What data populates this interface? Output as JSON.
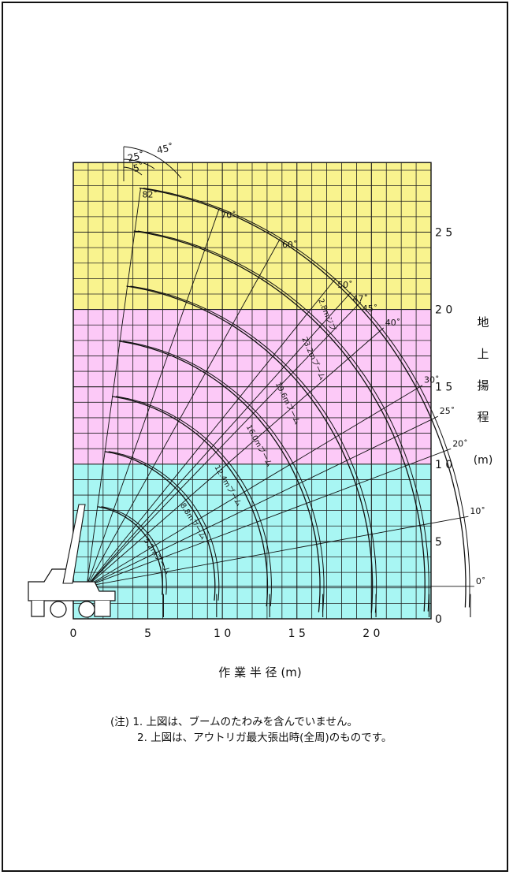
{
  "chart_data": {
    "type": "line",
    "title": "",
    "xlabel": "作 業 半 径 (m)",
    "ylabel_chars": [
      "地",
      "上",
      "揚",
      "程"
    ],
    "ylabel_unit": "(m)",
    "xlim": [
      0,
      24
    ],
    "ylim": [
      0,
      30
    ],
    "xticks": [
      0,
      5,
      10,
      15,
      20
    ],
    "xtick_labels": [
      "0",
      "5",
      "1 0",
      "1 5",
      "2 0"
    ],
    "yticks": [
      0,
      5,
      10,
      15,
      20,
      25
    ],
    "ytick_labels": [
      "0",
      "5",
      "1 0",
      "1 5",
      "2 0",
      "2 5"
    ],
    "grid": true,
    "bands": [
      {
        "from": 0,
        "to": 10,
        "color": "#a8f6f3"
      },
      {
        "from": 10,
        "to": 20,
        "color": "#fcc9f7"
      },
      {
        "from": 20,
        "to": 29.5,
        "color": "#f9f38e"
      }
    ],
    "series": [
      {
        "name": "5.2mブーム",
        "boom_length": 5.2,
        "color": "#111111"
      },
      {
        "name": "8.8mブーム",
        "boom_length": 8.8,
        "color": "#111111"
      },
      {
        "name": "12.4mブーム",
        "boom_length": 12.4,
        "color": "#111111"
      },
      {
        "name": "16.0mブーム",
        "boom_length": 16.0,
        "color": "#111111"
      },
      {
        "name": "19.6mブーム",
        "boom_length": 19.6,
        "color": "#111111"
      },
      {
        "name": "23.2mブーム",
        "boom_length": 23.2,
        "color": "#111111"
      },
      {
        "name": "2.8mジブ",
        "boom_length": 26.0,
        "color": "#111111"
      }
    ],
    "angle_rays": [
      {
        "label": "0˚",
        "deg": 0
      },
      {
        "label": "10˚",
        "deg": 10
      },
      {
        "label": "20˚",
        "deg": 20
      },
      {
        "label": "25˚",
        "deg": 25
      },
      {
        "label": "30˚",
        "deg": 30
      },
      {
        "label": "40˚",
        "deg": 40
      },
      {
        "label": "45˚",
        "deg": 45
      },
      {
        "label": "47˚",
        "deg": 47
      },
      {
        "label": "50˚",
        "deg": 50
      },
      {
        "label": "60˚",
        "deg": 60
      },
      {
        "label": "70˚",
        "deg": 70
      },
      {
        "label": "82˚",
        "deg": 82
      }
    ],
    "jib_offset_labels": [
      "5˚",
      "25˚",
      "45˚"
    ]
  },
  "notes": {
    "line1": "(注) 1. 上図は、ブームのたわみを含んでいません。",
    "line2": "2. 上図は、アウトリガ最大張出時(全周)のものです。"
  }
}
